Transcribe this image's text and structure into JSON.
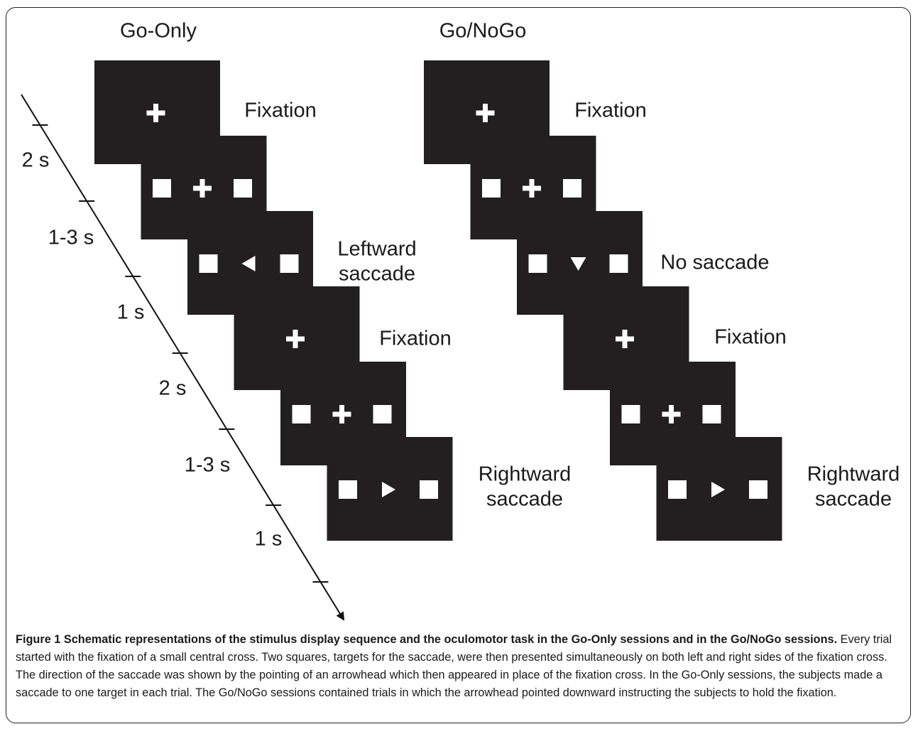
{
  "figure": {
    "panels": [
      {
        "title": "Go-Only",
        "stages": [
          [
            "Fixation"
          ],
          [
            "Leftward",
            "saccade"
          ],
          [
            "Fixation"
          ],
          [
            "Rightward",
            "saccade"
          ]
        ]
      },
      {
        "title": "Go/NoGo",
        "stages": [
          [
            "Fixation"
          ],
          [
            "No saccade"
          ],
          [
            "Fixation"
          ],
          [
            "Rightward",
            "saccade"
          ]
        ]
      }
    ],
    "timeline": [
      "2 s",
      "1-3 s",
      "1 s",
      "2 s",
      "1-3 s",
      "1 s"
    ],
    "caption": {
      "label": "Figure 1 Schematic representations of the stimulus display sequence and the oculomotor task in the Go-Only sessions and in the Go/NoGo sessions.",
      "text": "Every trial started with the fixation of a small central cross. Two squares, targets for the saccade, were then presented simultaneously on both left and right sides of the fixation cross. The direction of the saccade was shown by the pointing of an arrowhead which then appeared in place of the fixation cross. In the Go-Only sessions, the subjects made a saccade to one target in each trial. The Go/NoGo sessions contained trials in which the arrowhead pointed downward instructing the subjects to hold the fixation."
    }
  }
}
